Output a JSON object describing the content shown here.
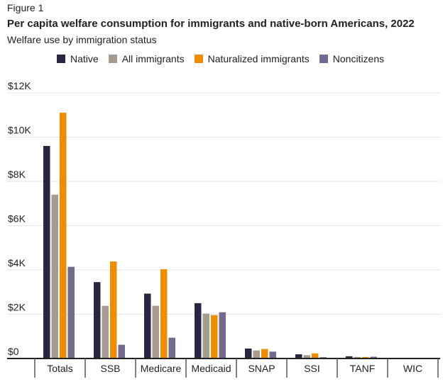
{
  "figure_label": "Figure 1",
  "chart_data": {
    "type": "bar",
    "title": "Per capita welfare consumption for immigrants and native-born Americans, 2022",
    "subtitle": "Welfare use by immigration status",
    "xlabel": "",
    "ylabel": "",
    "ylim": [
      0,
      12000
    ],
    "yticks": [
      0,
      2000,
      4000,
      6000,
      8000,
      10000,
      12000
    ],
    "ytick_labels": [
      "$0",
      "$2K",
      "$4K",
      "$6K",
      "$8K",
      "$10K",
      "$12K"
    ],
    "grid": true,
    "legend_position": "top",
    "categories": [
      "Totals",
      "SSB",
      "Medicare",
      "Medicaid",
      "SNAP",
      "SSI",
      "TANF",
      "WIC"
    ],
    "series": [
      {
        "name": "Native",
        "color": "#2a2540",
        "values": [
          9600,
          3450,
          2930,
          2500,
          450,
          190,
          100,
          20
        ]
      },
      {
        "name": "All immigrants",
        "color": "#a59b8f",
        "values": [
          7400,
          2380,
          2380,
          2030,
          360,
          150,
          70,
          20
        ]
      },
      {
        "name": "Naturalized immigrants",
        "color": "#f08c00",
        "values": [
          11100,
          4380,
          4030,
          1960,
          430,
          230,
          70,
          30
        ]
      },
      {
        "name": "Noncitizens",
        "color": "#736b8f",
        "values": [
          4140,
          620,
          940,
          2090,
          310,
          60,
          80,
          30
        ]
      }
    ]
  }
}
